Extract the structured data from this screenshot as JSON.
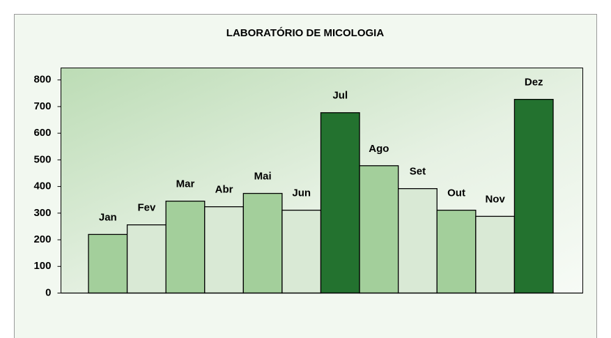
{
  "chart_data": {
    "type": "bar",
    "title": "LABORATÓRIO DE MICOLOGIA",
    "categories": [
      "Jan",
      "Fev",
      "Mar",
      "Abr",
      "Mai",
      "Jun",
      "Jul",
      "Ago",
      "Set",
      "Out",
      "Nov",
      "Dez"
    ],
    "values": [
      220,
      256,
      345,
      324,
      374,
      311,
      677,
      478,
      392,
      311,
      288,
      727
    ],
    "colors": [
      "#a3cf9b",
      "#d9e9d5",
      "#a3cf9b",
      "#d9e9d5",
      "#a3cf9b",
      "#d9e9d5",
      "#23722f",
      "#a3cf9b",
      "#d9e9d5",
      "#a3cf9b",
      "#d9e9d5",
      "#23722f"
    ],
    "ylim": [
      0,
      845
    ],
    "yticks": [
      0,
      100,
      200,
      300,
      400,
      500,
      600,
      700,
      800
    ],
    "grid": false
  }
}
